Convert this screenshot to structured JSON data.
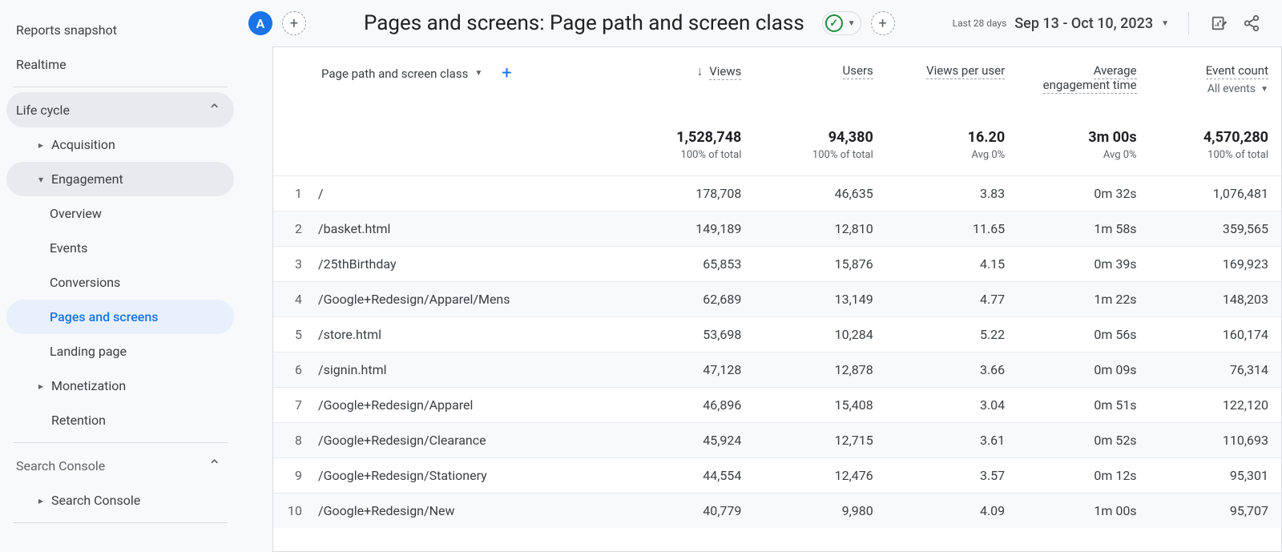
{
  "header": {
    "avatar_letter": "A",
    "title": "Pages and screens: Page path and screen class",
    "date_label": "Last 28 days",
    "date_range": "Sep 13 - Oct 10, 2023"
  },
  "sidebar": {
    "reports_snapshot": "Reports snapshot",
    "realtime": "Realtime",
    "life_cycle": "Life cycle",
    "acquisition": "Acquisition",
    "engagement": "Engagement",
    "overview": "Overview",
    "events": "Events",
    "conversions": "Conversions",
    "pages_and_screens": "Pages and screens",
    "landing_page": "Landing page",
    "monetization": "Monetization",
    "retention": "Retention",
    "search_console_section": "Search Console",
    "search_console_item": "Search Console"
  },
  "table": {
    "dimension_label": "Page path and screen class",
    "columns": {
      "views": "Views",
      "users": "Users",
      "views_per_user": "Views per user",
      "avg_engagement": "Average engagement time",
      "event_count": "Event count",
      "event_count_sub": "All events"
    },
    "summary": {
      "views": "1,528,748",
      "views_sub": "100% of total",
      "users": "94,380",
      "users_sub": "100% of total",
      "vpu": "16.20",
      "vpu_sub": "Avg 0%",
      "aet": "3m 00s",
      "aet_sub": "Avg 0%",
      "events": "4,570,280",
      "events_sub": "100% of total"
    },
    "rows": [
      {
        "idx": "1",
        "path": "/",
        "views": "178,708",
        "users": "46,635",
        "vpu": "3.83",
        "aet": "0m 32s",
        "events": "1,076,481"
      },
      {
        "idx": "2",
        "path": "/basket.html",
        "views": "149,189",
        "users": "12,810",
        "vpu": "11.65",
        "aet": "1m 58s",
        "events": "359,565"
      },
      {
        "idx": "3",
        "path": "/25thBirthday",
        "views": "65,853",
        "users": "15,876",
        "vpu": "4.15",
        "aet": "0m 39s",
        "events": "169,923"
      },
      {
        "idx": "4",
        "path": "/Google+Redesign/Apparel/Mens",
        "views": "62,689",
        "users": "13,149",
        "vpu": "4.77",
        "aet": "1m 22s",
        "events": "148,203"
      },
      {
        "idx": "5",
        "path": "/store.html",
        "views": "53,698",
        "users": "10,284",
        "vpu": "5.22",
        "aet": "0m 56s",
        "events": "160,174"
      },
      {
        "idx": "6",
        "path": "/signin.html",
        "views": "47,128",
        "users": "12,878",
        "vpu": "3.66",
        "aet": "0m 09s",
        "events": "76,314"
      },
      {
        "idx": "7",
        "path": "/Google+Redesign/Apparel",
        "views": "46,896",
        "users": "15,408",
        "vpu": "3.04",
        "aet": "0m 51s",
        "events": "122,120"
      },
      {
        "idx": "8",
        "path": "/Google+Redesign/Clearance",
        "views": "45,924",
        "users": "12,715",
        "vpu": "3.61",
        "aet": "0m 52s",
        "events": "110,693"
      },
      {
        "idx": "9",
        "path": "/Google+Redesign/Stationery",
        "views": "44,554",
        "users": "12,476",
        "vpu": "3.57",
        "aet": "0m 12s",
        "events": "95,301"
      },
      {
        "idx": "10",
        "path": "/Google+Redesign/New",
        "views": "40,779",
        "users": "9,980",
        "vpu": "4.09",
        "aet": "1m 00s",
        "events": "95,707"
      }
    ]
  }
}
